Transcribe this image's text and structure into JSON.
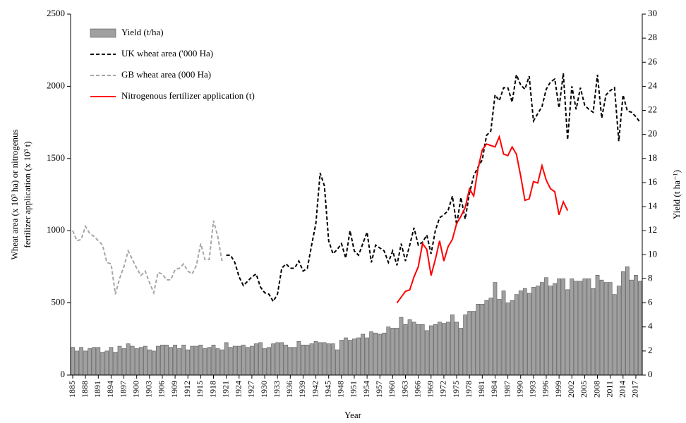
{
  "chart_data": {
    "type": "bar-line",
    "xlabel": "Year",
    "ylabel": [
      "Wheat area (x 10³ ha) or nitrogenus",
      "fertilizer application  (x 10³ t)"
    ],
    "y2label": "Yield (t ha⁻¹)",
    "x": [
      1885,
      1886,
      1887,
      1888,
      1889,
      1890,
      1891,
      1892,
      1893,
      1894,
      1895,
      1896,
      1897,
      1898,
      1899,
      1900,
      1901,
      1902,
      1903,
      1904,
      1905,
      1906,
      1907,
      1908,
      1909,
      1910,
      1911,
      1912,
      1913,
      1914,
      1915,
      1916,
      1917,
      1918,
      1919,
      1920,
      1921,
      1922,
      1923,
      1924,
      1925,
      1926,
      1927,
      1928,
      1929,
      1930,
      1931,
      1932,
      1933,
      1934,
      1935,
      1936,
      1937,
      1938,
      1939,
      1940,
      1941,
      1942,
      1943,
      1944,
      1945,
      1946,
      1947,
      1948,
      1949,
      1950,
      1951,
      1952,
      1953,
      1954,
      1955,
      1956,
      1957,
      1958,
      1959,
      1960,
      1961,
      1962,
      1963,
      1964,
      1965,
      1966,
      1967,
      1968,
      1969,
      1970,
      1971,
      1972,
      1973,
      1974,
      1975,
      1976,
      1977,
      1978,
      1979,
      1980,
      1981,
      1982,
      1983,
      1984,
      1985,
      1986,
      1987,
      1988,
      1989,
      1990,
      1991,
      1992,
      1993,
      1994,
      1995,
      1996,
      1997,
      1998,
      1999,
      2000,
      2001,
      2002,
      2003,
      2004,
      2005,
      2006,
      2007,
      2008,
      2009,
      2010,
      2011,
      2012,
      2013,
      2014,
      2015,
      2016,
      2017,
      2018
    ],
    "xlim": [
      1884.5,
      2018.5
    ],
    "xticks": [
      1885,
      1888,
      1891,
      1894,
      1897,
      1900,
      1903,
      1906,
      1909,
      1912,
      1915,
      1918,
      1921,
      1924,
      1927,
      1930,
      1933,
      1936,
      1939,
      1942,
      1945,
      1948,
      1951,
      1954,
      1957,
      1960,
      1963,
      1966,
      1969,
      1972,
      1975,
      1978,
      1981,
      1984,
      1987,
      1990,
      1993,
      1996,
      1999,
      2002,
      2005,
      2008,
      2011,
      2014,
      2017
    ],
    "ylim": [
      0,
      2500
    ],
    "yticks": [
      0,
      500,
      1000,
      1500,
      2000,
      2500
    ],
    "y2lim": [
      0,
      30
    ],
    "y2ticks": [
      0,
      2,
      4,
      6,
      8,
      10,
      12,
      14,
      16,
      18,
      20,
      22,
      24,
      26,
      28,
      30
    ],
    "legend": "top-left",
    "series": [
      {
        "name": "Yield (t/ha)",
        "type": "bar",
        "axis": "y2",
        "color": "#a0a0a0",
        "values": [
          2.3,
          2.0,
          2.3,
          2.0,
          2.2,
          2.3,
          2.3,
          1.9,
          2.0,
          2.3,
          1.9,
          2.4,
          2.2,
          2.6,
          2.4,
          2.2,
          2.3,
          2.4,
          2.1,
          2.0,
          2.4,
          2.5,
          2.5,
          2.3,
          2.5,
          2.2,
          2.5,
          2.1,
          2.4,
          2.4,
          2.5,
          2.2,
          2.3,
          2.5,
          2.2,
          2.1,
          2.7,
          2.3,
          2.4,
          2.4,
          2.5,
          2.3,
          2.4,
          2.6,
          2.7,
          2.2,
          2.3,
          2.6,
          2.7,
          2.7,
          2.5,
          2.3,
          2.3,
          2.8,
          2.5,
          2.5,
          2.6,
          2.8,
          2.7,
          2.7,
          2.6,
          2.6,
          2.1,
          2.9,
          3.1,
          2.9,
          3.0,
          3.1,
          3.4,
          3.1,
          3.6,
          3.5,
          3.4,
          3.5,
          4.0,
          3.9,
          3.9,
          4.8,
          4.2,
          4.6,
          4.4,
          4.2,
          4.2,
          3.7,
          4.1,
          4.2,
          4.4,
          4.3,
          4.4,
          5.0,
          4.4,
          3.9,
          5.0,
          5.3,
          5.3,
          5.9,
          5.9,
          6.2,
          6.4,
          7.7,
          6.3,
          7.0,
          6.0,
          6.2,
          6.7,
          7.0,
          7.2,
          6.8,
          7.3,
          7.4,
          7.7,
          8.1,
          7.4,
          7.6,
          8.0,
          8.0,
          7.1,
          8.0,
          7.8,
          7.8,
          8.0,
          8.0,
          7.2,
          8.3,
          7.9,
          7.7,
          7.7,
          6.7,
          7.4,
          8.6,
          9.0,
          7.9,
          8.3,
          7.8
        ]
      },
      {
        "name": "UK wheat area ('000 Ha)",
        "type": "line",
        "axis": "y",
        "color": "#000000",
        "dashed": true,
        "values": [
          null,
          null,
          null,
          null,
          null,
          null,
          null,
          null,
          null,
          null,
          null,
          null,
          null,
          null,
          null,
          null,
          null,
          null,
          null,
          null,
          null,
          null,
          null,
          null,
          null,
          null,
          null,
          null,
          null,
          null,
          null,
          null,
          null,
          null,
          null,
          null,
          830,
          830,
          780,
          680,
          620,
          650,
          680,
          700,
          610,
          570,
          560,
          510,
          560,
          740,
          770,
          740,
          740,
          790,
          720,
          740,
          900,
          1050,
          1400,
          1310,
          930,
          840,
          870,
          910,
          810,
          1000,
          860,
          830,
          910,
          990,
          780,
          900,
          880,
          860,
          780,
          860,
          760,
          910,
          790,
          900,
          1020,
          900,
          920,
          970,
          840,
          1000,
          1090,
          1110,
          1140,
          1240,
          1040,
          1230,
          1080,
          1260,
          1380,
          1440,
          1490,
          1660,
          1690,
          1940,
          1900,
          1990,
          1990,
          1890,
          2080,
          2010,
          1980,
          2070,
          1760,
          1810,
          1860,
          1980,
          2030,
          2050,
          1850,
          2090,
          1630,
          2000,
          1840,
          1990,
          1870,
          1840,
          1820,
          2080,
          1780,
          1940,
          1970,
          1990,
          1620,
          1940,
          1830,
          1820,
          1790,
          1750
        ]
      },
      {
        "name": "GB wheat area (000 Ha)",
        "type": "line",
        "axis": "y",
        "color": "#a6a6a6",
        "dashed": true,
        "values": [
          1000,
          930,
          940,
          1030,
          980,
          960,
          930,
          900,
          780,
          770,
          560,
          670,
          750,
          860,
          800,
          740,
          690,
          720,
          640,
          570,
          710,
          700,
          660,
          660,
          730,
          740,
          770,
          720,
          700,
          760,
          910,
          800,
          800,
          1070,
          960,
          790,
          null,
          null,
          null,
          null,
          null,
          null,
          null,
          null,
          null,
          null,
          null,
          null,
          null,
          null,
          null,
          null,
          null,
          null,
          null,
          null,
          null,
          null,
          null,
          null,
          null,
          null,
          null,
          null,
          null,
          null,
          null,
          null,
          null,
          null,
          null,
          null,
          null,
          null,
          null,
          null,
          null,
          null,
          null,
          null,
          null,
          null,
          null,
          null,
          null,
          null,
          null,
          null,
          null,
          null,
          null,
          null,
          null,
          null,
          null,
          null,
          null,
          null,
          null,
          null,
          null,
          null,
          null,
          null,
          null,
          null,
          null,
          null,
          null,
          null,
          null,
          null,
          null,
          null,
          null,
          null,
          null,
          null,
          null,
          null,
          null,
          null,
          null,
          null,
          null,
          null,
          null,
          null,
          null,
          null,
          null,
          null,
          null,
          null
        ]
      },
      {
        "name": "Nitrogenous fertilizer application (t)",
        "type": "line",
        "axis": "y",
        "color": "#ff0000",
        "dashed": false,
        "values": [
          null,
          null,
          null,
          null,
          null,
          null,
          null,
          null,
          null,
          null,
          null,
          null,
          null,
          null,
          null,
          null,
          null,
          null,
          null,
          null,
          null,
          null,
          null,
          null,
          null,
          null,
          null,
          null,
          null,
          null,
          null,
          null,
          null,
          null,
          null,
          null,
          null,
          null,
          null,
          null,
          null,
          null,
          null,
          null,
          null,
          null,
          null,
          null,
          null,
          null,
          null,
          null,
          null,
          null,
          null,
          null,
          null,
          null,
          null,
          null,
          null,
          null,
          null,
          null,
          null,
          null,
          null,
          null,
          null,
          null,
          null,
          null,
          null,
          null,
          null,
          null,
          500,
          540,
          580,
          590,
          680,
          750,
          910,
          870,
          690,
          800,
          930,
          790,
          890,
          940,
          1050,
          1100,
          1160,
          1290,
          1240,
          1430,
          1560,
          1600,
          1590,
          1580,
          1650,
          1530,
          1520,
          1580,
          1530,
          1380,
          1210,
          1220,
          1340,
          1330,
          1450,
          1350,
          1290,
          1270,
          1110,
          1200,
          1140,
          null,
          null,
          null,
          null,
          null,
          null,
          null,
          null,
          null,
          null,
          null,
          null,
          null,
          null,
          null,
          null,
          null
        ]
      }
    ]
  }
}
